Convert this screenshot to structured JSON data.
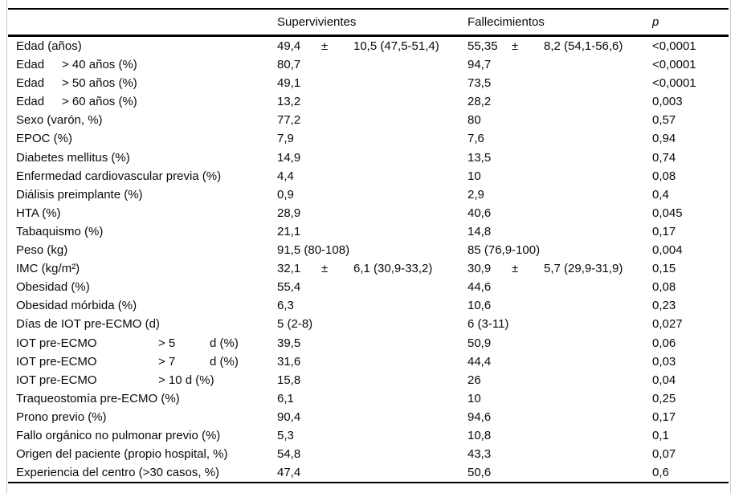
{
  "table": {
    "columns": {
      "label": "",
      "sup": "Supervivientes",
      "fal": "Fallecimientos",
      "p": "p"
    },
    "rows": [
      {
        "label": "Edad (años)",
        "sup": [
          "49,4",
          "±",
          "10,5 (47,5-51,4)"
        ],
        "fal": [
          "55,35",
          "±",
          "8,2 (54,1-56,6)"
        ],
        "p": "<0,0001"
      },
      {
        "label": [
          "Edad",
          "> 40 años (%)"
        ],
        "sup": "80,7",
        "fal": "94,7",
        "p": "<0,0001"
      },
      {
        "label": [
          "Edad",
          "> 50 años (%)"
        ],
        "sup": "49,1",
        "fal": "73,5",
        "p": "<0,0001"
      },
      {
        "label": [
          "Edad",
          "> 60 años (%)"
        ],
        "sup": "13,2",
        "fal": "28,2",
        "p": "0,003"
      },
      {
        "label": "Sexo (varón, %)",
        "sup": "77,2",
        "fal": "80",
        "p": "0,57"
      },
      {
        "label": "EPOC (%)",
        "sup": "7,9",
        "fal": "7,6",
        "p": "0,94"
      },
      {
        "label": "Diabetes mellitus (%)",
        "sup": "14,9",
        "fal": "13,5",
        "p": "0,74"
      },
      {
        "label": "Enfermedad cardiovascular previa (%)",
        "sup": "4,4",
        "fal": "10",
        "p": "0,08"
      },
      {
        "label": "Diálisis preimplante (%)",
        "sup": "0,9",
        "fal": "2,9",
        "p": "0,4"
      },
      {
        "label": "HTA (%)",
        "sup": "28,9",
        "fal": "40,6",
        "p": "0,045"
      },
      {
        "label": "Tabaquismo (%)",
        "sup": "21,1",
        "fal": "14,8",
        "p": "0,17"
      },
      {
        "label": "Peso (kg)",
        "sup": "91,5 (80-108)",
        "fal": "85 (76,9-100)",
        "p": "0,004"
      },
      {
        "label": "IMC (kg/m²)",
        "sup": [
          "32,1",
          "±",
          "6,1 (30,9-33,2)"
        ],
        "fal": [
          "30,9",
          "±",
          "5,7 (29,9-31,9)"
        ],
        "p": "0,15"
      },
      {
        "label": "Obesidad (%)",
        "sup": "55,4",
        "fal": "44,6",
        "p": "0,08"
      },
      {
        "label": "Obesidad mórbida (%)",
        "sup": "6,3",
        "fal": "10,6",
        "p": "0,23"
      },
      {
        "label": "Días de IOT pre-ECMO (d)",
        "sup": "5 (2-8)",
        "fal": "6 (3-11)",
        "p": "0,027"
      },
      {
        "label": [
          "IOT pre-ECMO",
          "> 5",
          "d (%)"
        ],
        "sup": "39,5",
        "fal": "50,9",
        "p": "0,06"
      },
      {
        "label": [
          "IOT pre-ECMO",
          "> 7",
          "d (%)"
        ],
        "sup": "31,6",
        "fal": "44,4",
        "p": "0,03"
      },
      {
        "label": [
          "IOT pre-ECMO",
          "> 10 d (%)"
        ],
        "sup": "15,8",
        "fal": "26",
        "p": "0,04"
      },
      {
        "label": "Traqueostomía pre-ECMO (%)",
        "sup": "6,1",
        "fal": "10",
        "p": "0,25"
      },
      {
        "label": "Prono previo (%)",
        "sup": "90,4",
        "fal": "94,6",
        "p": "0,17"
      },
      {
        "label": "Fallo orgánico no pulmonar previo (%)",
        "sup": "5,3",
        "fal": "10,8",
        "p": "0,1"
      },
      {
        "label": "Origen del paciente (propio hospital, %)",
        "sup": "54,8",
        "fal": "43,3",
        "p": "0,07"
      },
      {
        "label": "Experiencia del centro (>30 casos, %)",
        "sup": "47,4",
        "fal": "50,6",
        "p": "0,6"
      }
    ]
  }
}
